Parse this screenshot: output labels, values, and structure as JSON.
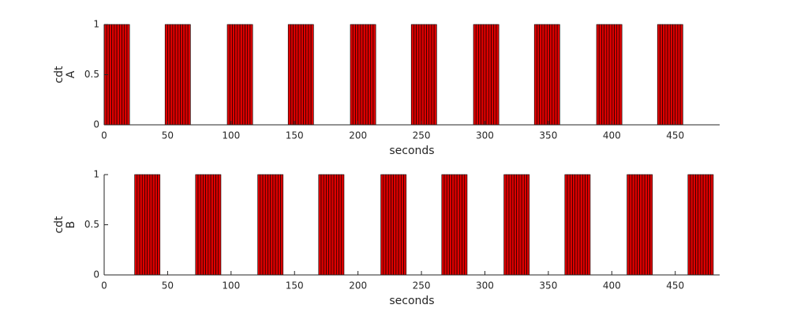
{
  "chart_data": [
    {
      "type": "bar",
      "ylabel": [
        "cdt",
        "A"
      ],
      "xlabel": "seconds",
      "color": "#dd0000",
      "edge_color": "#000000",
      "bar_width": 2,
      "x": [
        1,
        3,
        5,
        7,
        9,
        11,
        13,
        15,
        17,
        19,
        49,
        51,
        53,
        55,
        57,
        59,
        61,
        63,
        65,
        67,
        98,
        100,
        102,
        104,
        106,
        108,
        110,
        112,
        114,
        116,
        146,
        148,
        150,
        152,
        154,
        156,
        158,
        160,
        162,
        164,
        195,
        197,
        199,
        201,
        203,
        205,
        207,
        209,
        211,
        213,
        243,
        245,
        247,
        249,
        251,
        253,
        255,
        257,
        259,
        261,
        292,
        294,
        296,
        298,
        300,
        302,
        304,
        306,
        308,
        310,
        340,
        342,
        344,
        346,
        348,
        350,
        352,
        354,
        356,
        358,
        389,
        391,
        393,
        395,
        397,
        399,
        401,
        403,
        405,
        407,
        437,
        439,
        441,
        443,
        445,
        447,
        449,
        451,
        453,
        455
      ],
      "values": [
        1,
        1,
        1,
        1,
        1,
        1,
        1,
        1,
        1,
        1,
        1,
        1,
        1,
        1,
        1,
        1,
        1,
        1,
        1,
        1,
        1,
        1,
        1,
        1,
        1,
        1,
        1,
        1,
        1,
        1,
        1,
        1,
        1,
        1,
        1,
        1,
        1,
        1,
        1,
        1,
        1,
        1,
        1,
        1,
        1,
        1,
        1,
        1,
        1,
        1,
        1,
        1,
        1,
        1,
        1,
        1,
        1,
        1,
        1,
        1,
        1,
        1,
        1,
        1,
        1,
        1,
        1,
        1,
        1,
        1,
        1,
        1,
        1,
        1,
        1,
        1,
        1,
        1,
        1,
        1,
        1,
        1,
        1,
        1,
        1,
        1,
        1,
        1,
        1,
        1,
        1,
        1,
        1,
        1,
        1,
        1,
        1,
        1,
        1,
        1
      ],
      "xlim": [
        0,
        485
      ],
      "xticks": [
        0,
        50,
        100,
        150,
        200,
        250,
        300,
        350,
        400,
        450
      ],
      "ylim": [
        0,
        1
      ],
      "yticks": [
        0,
        0.5,
        1
      ]
    },
    {
      "type": "bar",
      "ylabel": [
        "cdt",
        "B"
      ],
      "xlabel": "seconds",
      "color": "#dd0000",
      "edge_color": "#000000",
      "bar_width": 2,
      "x": [
        25,
        27,
        29,
        31,
        33,
        35,
        37,
        39,
        41,
        43,
        73,
        75,
        77,
        79,
        81,
        83,
        85,
        87,
        89,
        91,
        122,
        124,
        126,
        128,
        130,
        132,
        134,
        136,
        138,
        140,
        170,
        172,
        174,
        176,
        178,
        180,
        182,
        184,
        186,
        188,
        219,
        221,
        223,
        225,
        227,
        229,
        231,
        233,
        235,
        237,
        267,
        269,
        271,
        273,
        275,
        277,
        279,
        281,
        283,
        285,
        316,
        318,
        320,
        322,
        324,
        326,
        328,
        330,
        332,
        334,
        364,
        366,
        368,
        370,
        372,
        374,
        376,
        378,
        380,
        382,
        413,
        415,
        417,
        419,
        421,
        423,
        425,
        427,
        429,
        431,
        461,
        463,
        465,
        467,
        469,
        471,
        473,
        475,
        477,
        479
      ],
      "values": [
        1,
        1,
        1,
        1,
        1,
        1,
        1,
        1,
        1,
        1,
        1,
        1,
        1,
        1,
        1,
        1,
        1,
        1,
        1,
        1,
        1,
        1,
        1,
        1,
        1,
        1,
        1,
        1,
        1,
        1,
        1,
        1,
        1,
        1,
        1,
        1,
        1,
        1,
        1,
        1,
        1,
        1,
        1,
        1,
        1,
        1,
        1,
        1,
        1,
        1,
        1,
        1,
        1,
        1,
        1,
        1,
        1,
        1,
        1,
        1,
        1,
        1,
        1,
        1,
        1,
        1,
        1,
        1,
        1,
        1,
        1,
        1,
        1,
        1,
        1,
        1,
        1,
        1,
        1,
        1,
        1,
        1,
        1,
        1,
        1,
        1,
        1,
        1,
        1,
        1,
        1,
        1,
        1,
        1,
        1,
        1,
        1,
        1,
        1,
        1
      ],
      "xlim": [
        0,
        485
      ],
      "xticks": [
        0,
        50,
        100,
        150,
        200,
        250,
        300,
        350,
        400,
        450
      ],
      "ylim": [
        0,
        1
      ],
      "yticks": [
        0,
        0.5,
        1
      ]
    }
  ]
}
